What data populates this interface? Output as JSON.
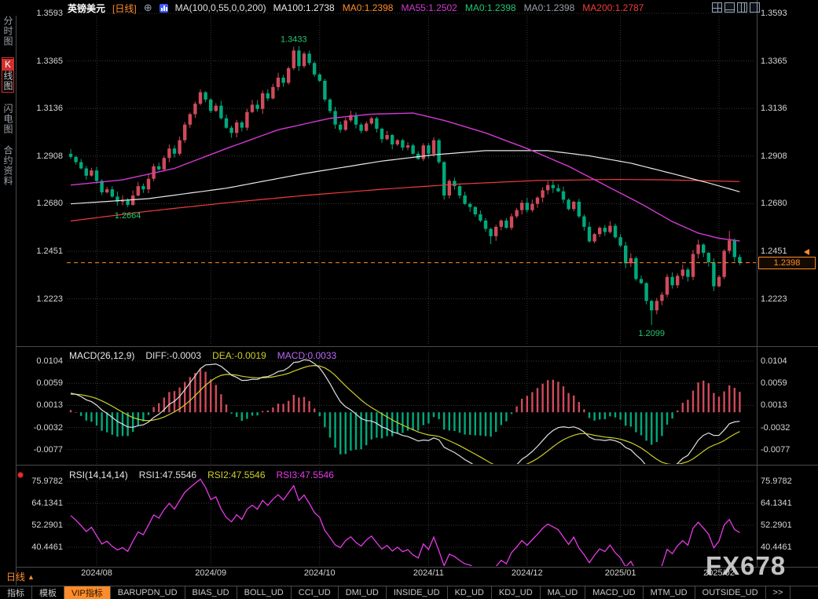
{
  "header": {
    "symbol": "英镑美元",
    "period_tag": "[日线]",
    "ma_settings": "MA(100,0,55,0,0,200)",
    "ma_labels": [
      {
        "label": "MA100:1.2738",
        "color": "#e8e8e8"
      },
      {
        "label": "MA0:1.2398",
        "color": "#ff8c2a"
      },
      {
        "label": "MA55:1.2502",
        "color": "#d23ad2"
      },
      {
        "label": "MA0:1.2398",
        "color": "#21c76d"
      },
      {
        "label": "MA0:1.2398",
        "color": "#9aa0a6"
      },
      {
        "label": "MA200:1.2787",
        "color": "#f23b3b"
      }
    ]
  },
  "sidebar": {
    "items": [
      {
        "label": "分时图",
        "selected": false
      },
      {
        "label": "K线图",
        "selected": true
      },
      {
        "label": "闪电图",
        "selected": false
      },
      {
        "label": "合约资料",
        "selected": false
      }
    ]
  },
  "watermark": {
    "text": "FX678"
  },
  "bottom_bar": {
    "period_label": "日线",
    "period_arrow": "▲",
    "tabs": [
      {
        "label": "指标",
        "active": false
      },
      {
        "label": "模板",
        "active": false
      },
      {
        "label": "VIP指标",
        "active": true
      },
      {
        "label": "BARUPDN_UD",
        "active": false
      },
      {
        "label": "BIAS_UD",
        "active": false
      },
      {
        "label": "BOLL_UD",
        "active": false
      },
      {
        "label": "CCI_UD",
        "active": false
      },
      {
        "label": "DMI_UD",
        "active": false
      },
      {
        "label": "INSIDE_UD",
        "active": false
      },
      {
        "label": "KD_UD",
        "active": false
      },
      {
        "label": "KDJ_UD",
        "active": false
      },
      {
        "label": "MA_UD",
        "active": false
      },
      {
        "label": "MACD_UD",
        "active": false
      },
      {
        "label": "MTM_UD",
        "active": false
      },
      {
        "label": "OUTSIDE_UD",
        "active": false
      },
      {
        "label": ">>",
        "active": false
      }
    ]
  },
  "colors": {
    "up": "#cf4a5a",
    "down": "#00a97c",
    "accent": "#ff8c2a",
    "ma100": "#e8e8e8",
    "ma55": "#d23ad2",
    "ma200": "#f23b3b",
    "diff": "#e0e0e0",
    "dea": "#cfcf2a",
    "macd_line": "#b869f5",
    "rsi": "#e53ae5",
    "annotation": "#21c76d"
  },
  "chart_data": {
    "type": "candlestick",
    "symbol": "英镑美元",
    "period": "日线",
    "price_ticks": [
      "1.3593",
      "1.3365",
      "1.3136",
      "1.2908",
      "1.2680",
      "1.2451",
      "1.2223"
    ],
    "x_ticks": [
      {
        "index": 5,
        "label": "2024/08"
      },
      {
        "index": 27,
        "label": "2024/09"
      },
      {
        "index": 48,
        "label": "2024/10"
      },
      {
        "index": 69,
        "label": "2024/11"
      },
      {
        "index": 88,
        "label": "2024/12"
      },
      {
        "index": 106,
        "label": "2025/01"
      },
      {
        "index": 125,
        "label": "2025/02"
      }
    ],
    "last_price_label": "1.2398",
    "annotations": [
      {
        "index": 43,
        "pos": "high",
        "text": "1.3433"
      },
      {
        "index": 11,
        "pos": "low",
        "text": "1.2664"
      },
      {
        "index": 112,
        "pos": "low",
        "text": "1.2099"
      }
    ],
    "candles": {
      "closes": [
        1.2905,
        1.288,
        1.285,
        1.2815,
        1.284,
        1.279,
        1.2735,
        1.275,
        1.2715,
        1.269,
        1.27,
        1.2675,
        1.272,
        1.2765,
        1.275,
        1.28,
        1.286,
        1.2845,
        1.29,
        1.2945,
        1.292,
        1.2985,
        1.306,
        1.311,
        1.316,
        1.3215,
        1.318,
        1.3125,
        1.315,
        1.309,
        1.3045,
        1.302,
        1.307,
        1.3045,
        1.312,
        1.3155,
        1.3135,
        1.321,
        1.3185,
        1.324,
        1.3285,
        1.326,
        1.333,
        1.3415,
        1.334,
        1.34,
        1.3355,
        1.33,
        1.327,
        1.318,
        1.3125,
        1.306,
        1.3035,
        1.308,
        1.3105,
        1.306,
        1.303,
        1.3065,
        1.309,
        1.304,
        1.299,
        1.301,
        1.2965,
        1.2985,
        1.295,
        1.296,
        1.292,
        1.2895,
        1.296,
        1.292,
        1.2985,
        1.288,
        1.272,
        1.279,
        1.2765,
        1.272,
        1.268,
        1.2665,
        1.263,
        1.26,
        1.256,
        1.2525,
        1.257,
        1.26,
        1.2565,
        1.262,
        1.265,
        1.2685,
        1.265,
        1.268,
        1.271,
        1.2745,
        1.277,
        1.2755,
        1.274,
        1.27,
        1.2655,
        1.269,
        1.262,
        1.257,
        1.25,
        1.2535,
        1.2565,
        1.2545,
        1.2575,
        1.252,
        1.248,
        1.2395,
        1.242,
        1.232,
        1.23,
        1.2215,
        1.217,
        1.2215,
        1.2245,
        1.233,
        1.229,
        1.2335,
        1.2365,
        1.233,
        1.244,
        1.2485,
        1.2445,
        1.24,
        1.2285,
        1.233,
        1.2455,
        1.2505,
        1.2425,
        1.2398
      ],
      "extremes": {
        "11": {
          "low": 1.2664
        },
        "43": {
          "high": 1.3433
        },
        "81": {
          "low": 1.2487
        },
        "112": {
          "low": 1.2099
        },
        "127": {
          "high": 1.255
        }
      }
    },
    "overlays": {
      "ma55": [
        [
          0,
          1.277
        ],
        [
          10,
          1.2795
        ],
        [
          20,
          1.285
        ],
        [
          30,
          1.2945
        ],
        [
          40,
          1.3035
        ],
        [
          50,
          1.309
        ],
        [
          58,
          1.311
        ],
        [
          66,
          1.3115
        ],
        [
          72,
          1.308
        ],
        [
          80,
          1.302
        ],
        [
          88,
          1.2945
        ],
        [
          96,
          1.286
        ],
        [
          103,
          1.277
        ],
        [
          110,
          1.268
        ],
        [
          116,
          1.2595
        ],
        [
          121,
          1.254
        ],
        [
          125,
          1.2515
        ],
        [
          129,
          1.2502
        ]
      ],
      "ma100": [
        [
          0,
          1.268
        ],
        [
          15,
          1.2705
        ],
        [
          30,
          1.2755
        ],
        [
          45,
          1.2825
        ],
        [
          60,
          1.2885
        ],
        [
          70,
          1.2915
        ],
        [
          80,
          1.2935
        ],
        [
          92,
          1.2935
        ],
        [
          100,
          1.291
        ],
        [
          108,
          1.2875
        ],
        [
          116,
          1.2825
        ],
        [
          123,
          1.278
        ],
        [
          129,
          1.2738
        ]
      ],
      "ma200": [
        [
          0,
          1.2598
        ],
        [
          15,
          1.2645
        ],
        [
          30,
          1.2685
        ],
        [
          45,
          1.272
        ],
        [
          60,
          1.275
        ],
        [
          75,
          1.2775
        ],
        [
          90,
          1.2792
        ],
        [
          105,
          1.2797
        ],
        [
          115,
          1.2795
        ],
        [
          122,
          1.2791
        ],
        [
          129,
          1.2787
        ]
      ]
    },
    "macd": {
      "label": "MACD(26,12,9)",
      "diff_label": "DIFF:-0.0003",
      "dea_label": "DEA:-0.0019",
      "macd_label": "MACD:0.0033",
      "tick_labels": [
        "0.0104",
        "0.0059",
        "0.0013",
        "-0.0032",
        "-0.0077"
      ],
      "fast": 12,
      "slow": 26,
      "signal": 9
    },
    "rsi": {
      "label": "RSI(14,14,14)",
      "rsi1_label": "RSI1:47.5546",
      "rsi2_label": "RSI2:47.5546",
      "rsi3_label": "RSI3:47.5546",
      "tick_labels": [
        "75.9782",
        "64.1341",
        "52.2901",
        "40.4461"
      ],
      "period": 14
    }
  }
}
